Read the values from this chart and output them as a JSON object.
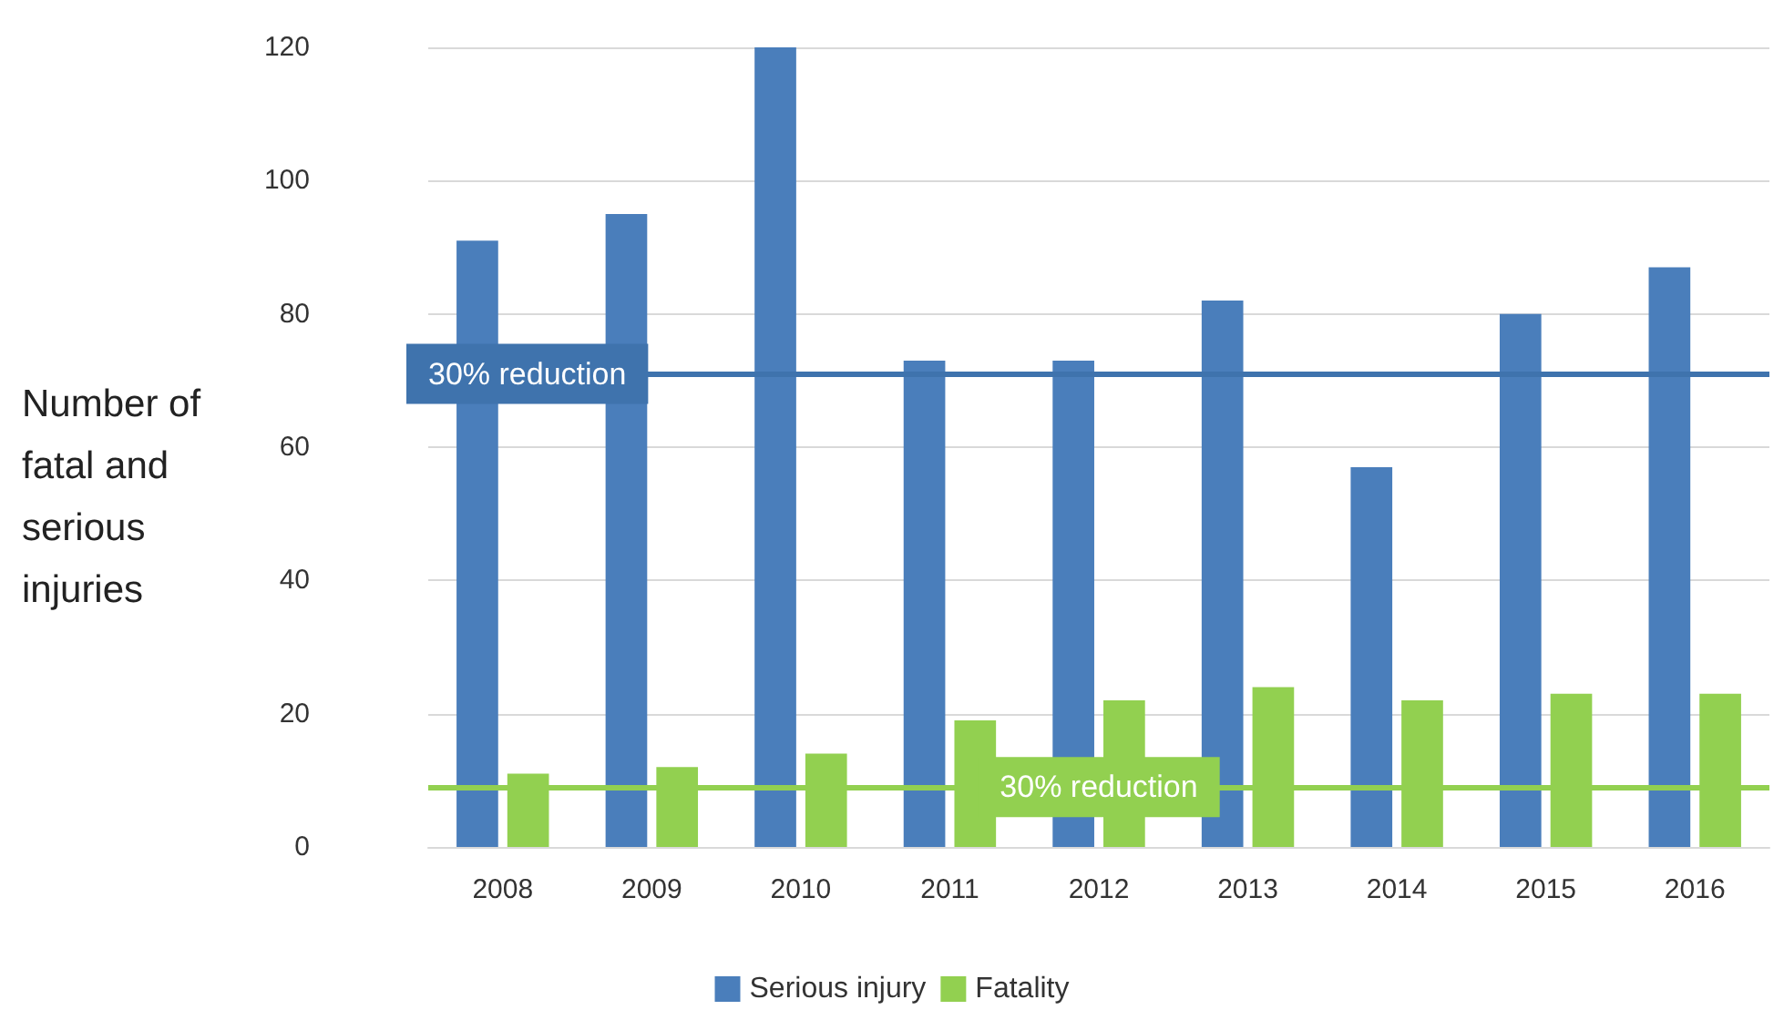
{
  "chart_data": {
    "type": "bar",
    "ylabel": "Number of fatal and serious injuries",
    "categories": [
      "2008",
      "2009",
      "2010",
      "2011",
      "2012",
      "2013",
      "2014",
      "2015",
      "2016"
    ],
    "series": [
      {
        "name": "Serious injury",
        "color": "#4a7ebb",
        "values": [
          91,
          95,
          120,
          73,
          73,
          82,
          57,
          80,
          87
        ]
      },
      {
        "name": "Fatality",
        "color": "#92d050",
        "values": [
          11,
          12,
          14,
          19,
          22,
          24,
          22,
          23,
          23
        ]
      }
    ],
    "ylim": [
      0,
      120
    ],
    "yticks": [
      0,
      20,
      40,
      60,
      80,
      100,
      120
    ],
    "grid": "y",
    "legend": "bottom",
    "ref_lines": [
      {
        "axis": "y",
        "value": 71,
        "label": "30% reduction",
        "color": "#3f73ad"
      },
      {
        "axis": "y",
        "value": 9,
        "label": "30% reduction",
        "color": "#92d050"
      }
    ]
  }
}
